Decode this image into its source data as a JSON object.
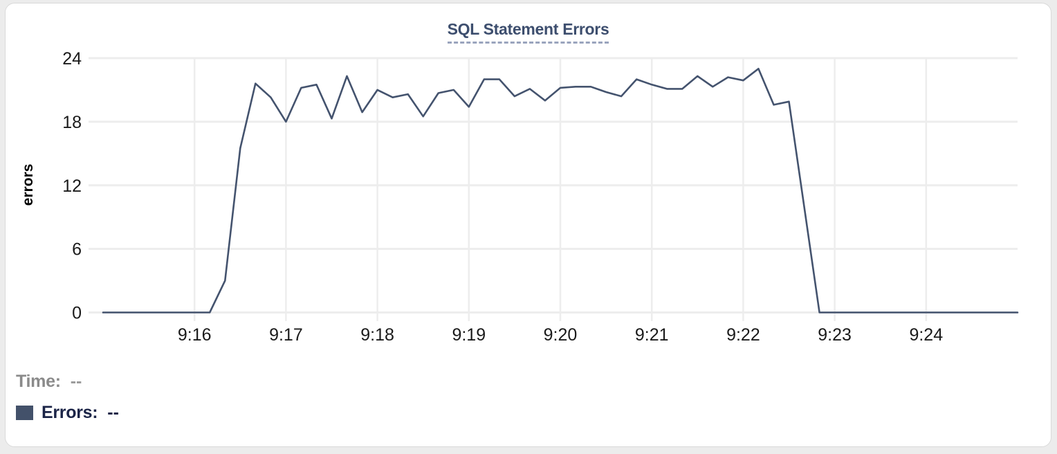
{
  "page": {
    "background": "#ececec",
    "card_background": "#ffffff",
    "card_border": "#d9d9d9"
  },
  "header": {
    "title": "SQL Statement Errors",
    "title_color": "#3d4e6e",
    "underline_color": "#9aa4bd"
  },
  "legend": {
    "time": {
      "label": "Time:",
      "value": "--"
    },
    "errors": {
      "label": "Errors:",
      "value": "--",
      "swatch_color": "#43516a"
    }
  },
  "chart_data": {
    "type": "line",
    "title": "SQL Statement Errors",
    "xlabel": "",
    "ylabel": "errors",
    "ylim": [
      0,
      24
    ],
    "y_ticks": [
      0,
      6,
      12,
      18,
      24
    ],
    "x_ticks": [
      "9:16",
      "9:17",
      "9:18",
      "9:19",
      "9:20",
      "9:21",
      "9:22",
      "9:23",
      "9:24"
    ],
    "x_range": [
      "9:15:00",
      "9:25:00"
    ],
    "grid": true,
    "legend_position": "bottom-left",
    "line_color": "#44536e",
    "grid_color": "#ededed",
    "tick_text_color": "#1a1a1a",
    "series": [
      {
        "name": "Errors",
        "points": [
          [
            "9:15:00",
            0
          ],
          [
            "9:15:10",
            0
          ],
          [
            "9:15:20",
            0
          ],
          [
            "9:15:30",
            0
          ],
          [
            "9:15:40",
            0
          ],
          [
            "9:15:50",
            0
          ],
          [
            "9:16:00",
            0
          ],
          [
            "9:16:10",
            0
          ],
          [
            "9:16:20",
            3
          ],
          [
            "9:16:30",
            15.5
          ],
          [
            "9:16:40",
            21.6
          ],
          [
            "9:16:50",
            20.3
          ],
          [
            "9:17:00",
            18
          ],
          [
            "9:17:10",
            21.2
          ],
          [
            "9:17:20",
            21.5
          ],
          [
            "9:17:30",
            18.3
          ],
          [
            "9:17:40",
            22.3
          ],
          [
            "9:17:50",
            18.9
          ],
          [
            "9:18:00",
            21
          ],
          [
            "9:18:10",
            20.3
          ],
          [
            "9:18:20",
            20.6
          ],
          [
            "9:18:30",
            18.5
          ],
          [
            "9:18:40",
            20.7
          ],
          [
            "9:18:50",
            21
          ],
          [
            "9:19:00",
            19.4
          ],
          [
            "9:19:10",
            22
          ],
          [
            "9:19:20",
            22
          ],
          [
            "9:19:30",
            20.4
          ],
          [
            "9:19:40",
            21.1
          ],
          [
            "9:19:50",
            20
          ],
          [
            "9:20:00",
            21.2
          ],
          [
            "9:20:10",
            21.3
          ],
          [
            "9:20:20",
            21.3
          ],
          [
            "9:20:30",
            20.8
          ],
          [
            "9:20:40",
            20.4
          ],
          [
            "9:20:50",
            22
          ],
          [
            "9:21:00",
            21.5
          ],
          [
            "9:21:10",
            21.1
          ],
          [
            "9:21:20",
            21.1
          ],
          [
            "9:21:30",
            22.3
          ],
          [
            "9:21:40",
            21.3
          ],
          [
            "9:21:50",
            22.2
          ],
          [
            "9:22:00",
            21.9
          ],
          [
            "9:22:10",
            23
          ],
          [
            "9:22:20",
            19.6
          ],
          [
            "9:22:30",
            19.9
          ],
          [
            "9:22:40",
            10
          ],
          [
            "9:22:50",
            0
          ],
          [
            "9:23:00",
            0
          ],
          [
            "9:23:10",
            0
          ],
          [
            "9:23:20",
            0
          ],
          [
            "9:23:30",
            0
          ],
          [
            "9:23:40",
            0
          ],
          [
            "9:23:50",
            0
          ],
          [
            "9:24:00",
            0
          ],
          [
            "9:24:10",
            0
          ],
          [
            "9:24:20",
            0
          ],
          [
            "9:24:30",
            0
          ],
          [
            "9:24:40",
            0
          ],
          [
            "9:24:50",
            0
          ],
          [
            "9:25:00",
            0
          ]
        ]
      }
    ]
  }
}
